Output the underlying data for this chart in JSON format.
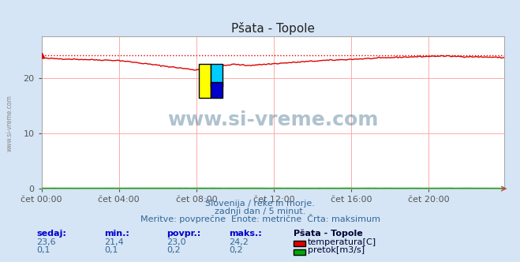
{
  "title": "Pšata - Topole",
  "bg_color": "#d5e5f5",
  "plot_bg_color": "#ffffff",
  "grid_color": "#ffaaaa",
  "temp_color": "#dd0000",
  "flow_color": "#00aa00",
  "max_line_color": "#dd0000",
  "tick_color": "#555555",
  "yticks": [
    0,
    10,
    20
  ],
  "ylim": [
    0,
    27.5
  ],
  "xlim": [
    0,
    287
  ],
  "xtick_labels": [
    "čet 00:00",
    "čet 04:00",
    "čet 08:00",
    "čet 12:00",
    "čet 16:00",
    "čet 20:00"
  ],
  "xtick_positions": [
    0,
    48,
    96,
    144,
    192,
    240
  ],
  "subtitle1": "Slovenija / reke in morje.",
  "subtitle2": "zadnji dan / 5 minut.",
  "subtitle3": "Meritve: povprečne  Enote: metrične  Črta: maksimum",
  "legend_station": "Pšata - Topole",
  "legend_temp_label": "temperatura[C]",
  "legend_flow_label": "pretok[m3/s]",
  "stat_headers": [
    "sedaj:",
    "min.:",
    "povpr.:",
    "maks.:"
  ],
  "stat_temp": [
    "23,6",
    "21,4",
    "23,0",
    "24,2"
  ],
  "stat_flow": [
    "0,1",
    "0,1",
    "0,2",
    "0,2"
  ],
  "watermark": "www.si-vreme.com",
  "watermark_color": "#1a5276",
  "max_temp": 24.2,
  "n_points": 288
}
